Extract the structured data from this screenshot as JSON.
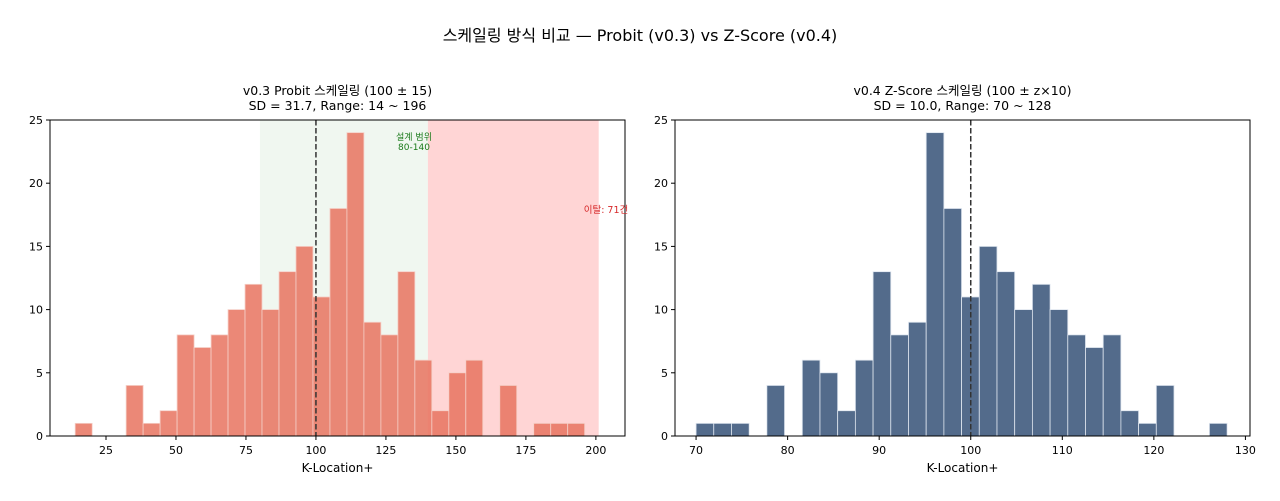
{
  "figure": {
    "suptitle": "스케일링 방식 비교 — Probit (v0.3) vs Z-Score (v0.4)"
  },
  "colors": {
    "probit_bar": "#e8735f",
    "zscore_bar": "#4a6385",
    "design_band": "#e6f2e6",
    "outlier_band": "#ffb3b3",
    "design_text": "#1a7a1a",
    "outlier_text": "#d62728",
    "mean_line": "#333333"
  },
  "chart_data": [
    {
      "type": "bar",
      "subtype": "histogram",
      "title_line1": "v0.3 Probit 스케일링 (100 ± 15)",
      "title_line2": "SD = 31.7, Range: 14 ~ 196",
      "xlabel": "K-Location+",
      "ylabel": "",
      "xlim": [
        5,
        210.4
      ],
      "ylim": [
        0,
        25
      ],
      "xticks": [
        25,
        50,
        75,
        100,
        125,
        150,
        175,
        200
      ],
      "yticks": [
        0,
        5,
        10,
        15,
        20,
        25
      ],
      "bin_start": 14,
      "bin_end": 196,
      "bins": 30,
      "counts": [
        1,
        0,
        0,
        4,
        1,
        2,
        8,
        7,
        8,
        10,
        12,
        10,
        13,
        15,
        11,
        18,
        24,
        9,
        8,
        13,
        6,
        2,
        5,
        6,
        0,
        4,
        0,
        1,
        1,
        1
      ],
      "mean_line": 100,
      "bands": [
        {
          "name": "design-range",
          "from": 80,
          "to": 140,
          "label_line1": "설계 범위",
          "label_line2": "80-140"
        },
        {
          "name": "outlier-range",
          "from": 140,
          "to": 201,
          "label": "이탈: 71건"
        }
      ]
    },
    {
      "type": "bar",
      "subtype": "histogram",
      "title_line1": "v0.4 Z-Score 스케일링 (100 ± z×10)",
      "title_line2": "SD = 10.0, Range: 70 ~ 128",
      "xlabel": "K-Location+",
      "ylabel": "",
      "xlim": [
        67.7,
        130.5
      ],
      "ylim": [
        0,
        25
      ],
      "xticks": [
        70,
        80,
        90,
        100,
        110,
        120,
        130
      ],
      "yticks": [
        0,
        5,
        10,
        15,
        20,
        25
      ],
      "bin_start": 70,
      "bin_end": 128,
      "bins": 30,
      "counts": [
        1,
        1,
        1,
        0,
        4,
        0,
        6,
        5,
        2,
        6,
        13,
        8,
        9,
        24,
        18,
        11,
        15,
        13,
        10,
        12,
        10,
        8,
        7,
        8,
        2,
        1,
        4,
        0,
        0,
        1
      ],
      "mean_line": 100
    }
  ]
}
